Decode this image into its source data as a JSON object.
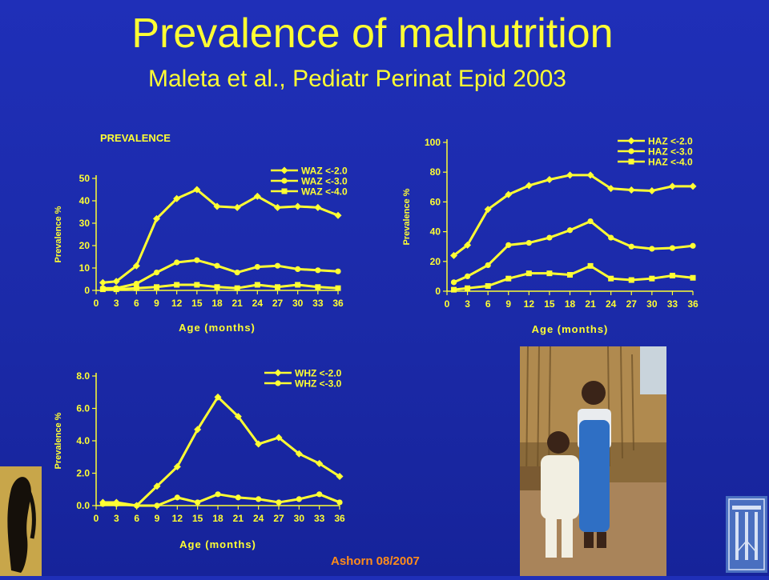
{
  "slide": {
    "title": "Prevalence of malnutrition",
    "subtitle": "Maleta et al., Pediatr Perinat Epid 2003",
    "credit": "Ashorn 08/2007"
  },
  "colors": {
    "background": "#1f2fb8",
    "foreground": "#ffff33",
    "credit": "#ff8c1a"
  },
  "chart_data": [
    {
      "type": "line",
      "title": "PREVALENCE",
      "xlabel": "Age (months)",
      "ylabel": "Prevalence %",
      "x": [
        1,
        3,
        6,
        9,
        12,
        15,
        18,
        21,
        24,
        27,
        30,
        33,
        36
      ],
      "xticks": [
        0,
        3,
        6,
        9,
        12,
        15,
        18,
        21,
        24,
        27,
        30,
        33,
        36
      ],
      "xlim": [
        0,
        36
      ],
      "yticks": [
        0,
        10,
        20,
        30,
        40,
        50
      ],
      "ylim": [
        0,
        50
      ],
      "legend_position": "top-right",
      "series": [
        {
          "name": "WAZ <-2.0",
          "marker": "diamond",
          "values": [
            3.5,
            4,
            11,
            32,
            41,
            45,
            37.5,
            37,
            42,
            37,
            37.5,
            37,
            33.5
          ]
        },
        {
          "name": "WAZ <-3.0",
          "marker": "circle",
          "values": [
            1,
            1,
            3,
            8,
            12.5,
            13.5,
            11,
            8,
            10.5,
            11,
            9.5,
            9,
            8.5
          ]
        },
        {
          "name": "WAZ <-4.0",
          "marker": "square",
          "values": [
            0.5,
            0.5,
            1,
            1.5,
            2.5,
            2.5,
            1.5,
            1,
            2.5,
            1.5,
            2.5,
            1.5,
            1
          ]
        }
      ]
    },
    {
      "type": "line",
      "title": "",
      "xlabel": "Age (months)",
      "ylabel": "Prevalence %",
      "x": [
        1,
        3,
        6,
        9,
        12,
        15,
        18,
        21,
        24,
        27,
        30,
        33,
        36
      ],
      "xticks": [
        0,
        3,
        6,
        9,
        12,
        15,
        18,
        21,
        24,
        27,
        30,
        33,
        36
      ],
      "xlim": [
        0,
        36
      ],
      "yticks": [
        0,
        20,
        40,
        60,
        80,
        100
      ],
      "ylim": [
        0,
        100
      ],
      "legend_position": "top-right",
      "series": [
        {
          "name": "HAZ <-2.0",
          "marker": "diamond",
          "values": [
            24,
            31,
            55,
            65,
            71,
            75,
            78,
            78,
            69,
            68,
            67.5,
            70.5,
            70.5
          ]
        },
        {
          "name": "HAZ <-3.0",
          "marker": "circle",
          "values": [
            6,
            10,
            17.5,
            31,
            32.5,
            36,
            41,
            47,
            36,
            30,
            28.5,
            29,
            30.5
          ]
        },
        {
          "name": "HAZ <-4.0",
          "marker": "square",
          "values": [
            1,
            2,
            3.5,
            8.5,
            12,
            12,
            11,
            17,
            8.5,
            7.5,
            8.5,
            10.5,
            9
          ]
        }
      ]
    },
    {
      "type": "line",
      "title": "",
      "xlabel": "Age (months)",
      "ylabel": "Prevalence %",
      "x": [
        1,
        3,
        6,
        9,
        12,
        15,
        18,
        21,
        24,
        27,
        30,
        33,
        36
      ],
      "xticks": [
        0,
        3,
        6,
        9,
        12,
        15,
        18,
        21,
        24,
        27,
        30,
        33,
        36
      ],
      "xlim": [
        0,
        36
      ],
      "yticks": [
        "0.0",
        "2.0",
        "4.0",
        "6.0",
        "8.0"
      ],
      "ylim": [
        0,
        8
      ],
      "legend_position": "top-right",
      "series": [
        {
          "name": "WHZ <-2.0",
          "marker": "diamond",
          "values": [
            0.2,
            0.2,
            0,
            1.2,
            2.4,
            4.7,
            6.7,
            5.5,
            3.8,
            4.2,
            3.2,
            2.6,
            1.8
          ]
        },
        {
          "name": "WHZ <-3.0",
          "marker": "circle",
          "values": [
            0.1,
            0.1,
            0,
            0,
            0.5,
            0.2,
            0.7,
            0.5,
            0.4,
            0.2,
            0.4,
            0.7,
            0.2
          ]
        }
      ]
    }
  ]
}
